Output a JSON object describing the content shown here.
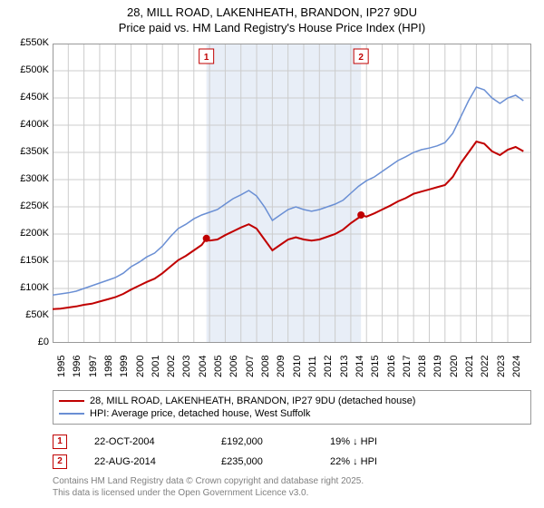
{
  "title_line1": "28, MILL ROAD, LAKENHEATH, BRANDON, IP27 9DU",
  "title_line2": "Price paid vs. HM Land Registry's House Price Index (HPI)",
  "chart": {
    "type": "line",
    "background_color": "#ffffff",
    "grid_color": "#cccccc",
    "shaded_band_color": "#e8eef7",
    "shaded_band_x": [
      2004.8,
      2014.65
    ],
    "xlim": [
      1995,
      2025.5
    ],
    "ylim": [
      0,
      550
    ],
    "y_unit_prefix": "£",
    "y_unit_suffix": "K",
    "ytick_step": 50,
    "x_ticks": [
      1995,
      1996,
      1997,
      1998,
      1999,
      2000,
      2001,
      2002,
      2003,
      2004,
      2005,
      2006,
      2007,
      2008,
      2009,
      2010,
      2011,
      2012,
      2013,
      2014,
      2015,
      2016,
      2017,
      2018,
      2019,
      2020,
      2021,
      2022,
      2023,
      2024
    ],
    "label_fontsize": 11,
    "series": [
      {
        "name": "HPI: Average price, detached house, West Suffolk",
        "color": "#6a8fd4",
        "line_width": 1.5,
        "x": [
          1995,
          1995.5,
          1996,
          1996.5,
          1997,
          1997.5,
          1998,
          1998.5,
          1999,
          1999.5,
          2000,
          2000.5,
          2001,
          2001.5,
          2002,
          2002.5,
          2003,
          2003.5,
          2004,
          2004.5,
          2005,
          2005.5,
          2006,
          2006.5,
          2007,
          2007.5,
          2008,
          2008.5,
          2009,
          2009.5,
          2010,
          2010.5,
          2011,
          2011.5,
          2012,
          2012.5,
          2013,
          2013.5,
          2014,
          2014.5,
          2015,
          2015.5,
          2016,
          2016.5,
          2017,
          2017.5,
          2018,
          2018.5,
          2019,
          2019.5,
          2020,
          2020.5,
          2021,
          2021.5,
          2022,
          2022.5,
          2023,
          2023.5,
          2024,
          2024.5,
          2025
        ],
        "y": [
          88,
          90,
          92,
          95,
          100,
          105,
          110,
          115,
          120,
          128,
          140,
          148,
          158,
          165,
          178,
          195,
          210,
          218,
          228,
          235,
          240,
          245,
          255,
          265,
          272,
          280,
          270,
          250,
          225,
          235,
          245,
          250,
          245,
          242,
          245,
          250,
          255,
          262,
          275,
          288,
          298,
          305,
          315,
          325,
          335,
          342,
          350,
          355,
          358,
          362,
          368,
          385,
          415,
          445,
          470,
          465,
          450,
          440,
          450,
          455,
          445
        ]
      },
      {
        "name": "28, MILL ROAD, LAKENHEATH, BRANDON, IP27 9DU (detached house)",
        "color": "#c00000",
        "line_width": 2,
        "x": [
          1995,
          1995.5,
          1996,
          1996.5,
          1997,
          1997.5,
          1998,
          1998.5,
          1999,
          1999.5,
          2000,
          2000.5,
          2001,
          2001.5,
          2002,
          2002.5,
          2003,
          2003.5,
          2004,
          2004.5,
          2004.8,
          2005,
          2005.5,
          2006,
          2006.5,
          2007,
          2007.5,
          2008,
          2008.5,
          2009,
          2009.5,
          2010,
          2010.5,
          2011,
          2011.5,
          2012,
          2012.5,
          2013,
          2013.5,
          2014,
          2014.5,
          2014.65,
          2015,
          2015.5,
          2016,
          2016.5,
          2017,
          2017.5,
          2018,
          2018.5,
          2019,
          2019.5,
          2020,
          2020.5,
          2021,
          2021.5,
          2022,
          2022.5,
          2023,
          2023.5,
          2024,
          2024.5,
          2025
        ],
        "y": [
          62,
          63,
          65,
          67,
          70,
          72,
          76,
          80,
          84,
          90,
          98,
          105,
          112,
          118,
          128,
          140,
          152,
          160,
          170,
          180,
          192,
          188,
          190,
          198,
          205,
          212,
          218,
          210,
          190,
          170,
          180,
          190,
          194,
          190,
          188,
          190,
          195,
          200,
          208,
          220,
          230,
          235,
          232,
          238,
          245,
          252,
          260,
          266,
          274,
          278,
          282,
          286,
          290,
          305,
          330,
          350,
          370,
          366,
          352,
          345,
          355,
          360,
          352
        ]
      }
    ],
    "sale_markers": [
      {
        "n": "1",
        "x": 2004.8,
        "y": 192
      },
      {
        "n": "2",
        "x": 2014.65,
        "y": 235
      }
    ],
    "marker_box_color": "#c00000",
    "marker_dot_color": "#c00000"
  },
  "legend": {
    "border_color": "#999999",
    "items": [
      {
        "color": "#c00000",
        "width": 2,
        "label": "28, MILL ROAD, LAKENHEATH, BRANDON, IP27 9DU (detached house)"
      },
      {
        "color": "#6a8fd4",
        "width": 1.5,
        "label": "HPI: Average price, detached house, West Suffolk"
      }
    ]
  },
  "sales_table": {
    "rows": [
      {
        "n": "1",
        "date": "22-OCT-2004",
        "price": "£192,000",
        "delta": "19% ↓ HPI"
      },
      {
        "n": "2",
        "date": "22-AUG-2014",
        "price": "£235,000",
        "delta": "22% ↓ HPI"
      }
    ]
  },
  "footer_line1": "Contains HM Land Registry data © Crown copyright and database right 2025.",
  "footer_line2": "This data is licensed under the Open Government Licence v3.0.",
  "footer_color": "#808080"
}
